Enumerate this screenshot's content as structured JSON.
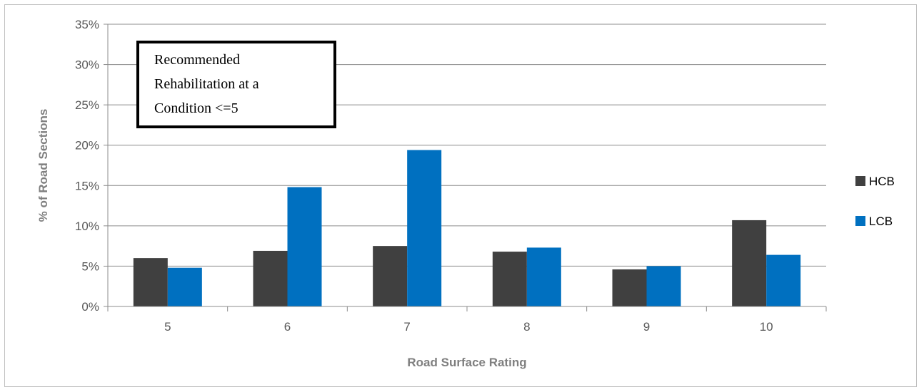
{
  "chart_data": {
    "type": "bar",
    "title": "",
    "xlabel": "Road Surface Rating",
    "ylabel": "% of Road Sections",
    "categories": [
      "5",
      "6",
      "7",
      "8",
      "9",
      "10"
    ],
    "series": [
      {
        "name": "HCB",
        "color": "#404040",
        "values": [
          6.0,
          6.9,
          7.5,
          6.8,
          4.6,
          10.7
        ]
      },
      {
        "name": "LCB",
        "color": "#0070c0",
        "values": [
          4.8,
          14.8,
          19.4,
          7.3,
          5.0,
          6.4
        ]
      }
    ],
    "ylim": [
      0,
      35
    ],
    "y_ticks": [
      0,
      5,
      10,
      15,
      20,
      25,
      30,
      35
    ],
    "y_tick_labels": [
      "0%",
      "5%",
      "10%",
      "15%",
      "20%",
      "25%",
      "30%",
      "35%"
    ],
    "grid": true,
    "legend_position": "right",
    "annotation": [
      "Recommended",
      "Rehabilitation at a",
      "Condition <=5"
    ]
  }
}
